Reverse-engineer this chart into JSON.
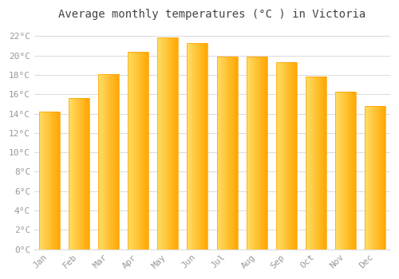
{
  "title": "Average monthly temperatures (°C ) in Victoria",
  "months": [
    "Jan",
    "Feb",
    "Mar",
    "Apr",
    "May",
    "Jun",
    "Jul",
    "Aug",
    "Sep",
    "Oct",
    "Nov",
    "Dec"
  ],
  "values": [
    14.2,
    15.6,
    18.1,
    20.4,
    21.9,
    21.3,
    19.9,
    19.9,
    19.3,
    17.8,
    16.3,
    14.8
  ],
  "bar_color_left": "#FFD966",
  "bar_color_right": "#FFA500",
  "background_color": "#FFFFFF",
  "grid_color": "#DDDDDD",
  "ylim": [
    0,
    23
  ],
  "yticks": [
    0,
    2,
    4,
    6,
    8,
    10,
    12,
    14,
    16,
    18,
    20,
    22
  ],
  "ytick_labels": [
    "0°C",
    "2°C",
    "4°C",
    "6°C",
    "8°C",
    "10°C",
    "12°C",
    "14°C",
    "16°C",
    "18°C",
    "20°C",
    "22°C"
  ],
  "title_fontsize": 10,
  "tick_fontsize": 8,
  "tick_color": "#999999",
  "title_color": "#444444",
  "font_family": "monospace",
  "bar_width": 0.7,
  "figsize": [
    5.0,
    3.5
  ],
  "dpi": 100
}
